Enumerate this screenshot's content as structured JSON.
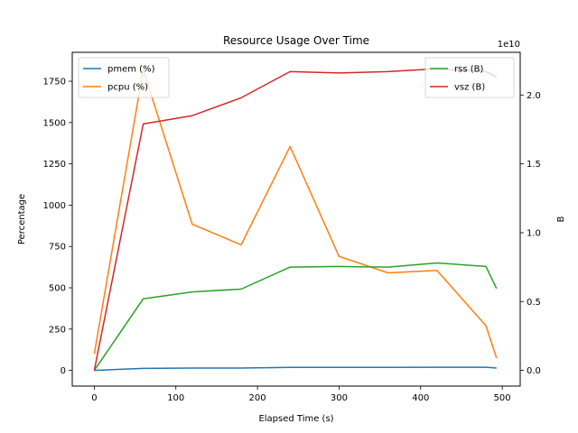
{
  "chart_data": {
    "type": "line",
    "title": "Resource Usage Over Time",
    "xlabel": "Elapsed Time (s)",
    "ylabel_left": "Percentage",
    "ylabel_right": "B",
    "right_axis_multiplier": "1e10",
    "grid": false,
    "xlim": [
      -27,
      522
    ],
    "ylim_left": [
      -95,
      1925
    ],
    "ylim_right": [
      -0.114,
      2.31
    ],
    "x_ticks": [
      0,
      100,
      200,
      300,
      400,
      500
    ],
    "y_ticks_left": [
      0,
      250,
      500,
      750,
      1000,
      1250,
      1500,
      1750
    ],
    "y_ticks_right": [
      0.0,
      0.5,
      1.0,
      1.5,
      2.0
    ],
    "y_tick_labels_right": [
      "0.0",
      "0.5",
      "1.0",
      "1.5",
      "2.0"
    ],
    "x": [
      0,
      60,
      120,
      180,
      240,
      300,
      360,
      420,
      480,
      493
    ],
    "series_left": [
      {
        "name": "pmem (%)",
        "color": "#1f77b4",
        "values": [
          0,
          12,
          14,
          14,
          18,
          18,
          18,
          19,
          19,
          14
        ]
      },
      {
        "name": "pcpu (%)",
        "color": "#ff7f0e",
        "values": [
          100,
          1820,
          885,
          760,
          1355,
          690,
          590,
          605,
          270,
          75
        ]
      }
    ],
    "series_right": [
      {
        "name": "rss (B)",
        "color": "#2ca02c",
        "values": [
          0.0,
          0.52,
          0.57,
          0.59,
          0.75,
          0.755,
          0.75,
          0.78,
          0.755,
          0.595
        ]
      },
      {
        "name": "vsz (B)",
        "color": "#d62728",
        "values": [
          0.0,
          1.79,
          1.85,
          1.98,
          2.17,
          2.16,
          2.17,
          2.19,
          2.17,
          2.13
        ]
      }
    ],
    "legend_left_position": "upper left",
    "legend_right_position": "upper right"
  }
}
